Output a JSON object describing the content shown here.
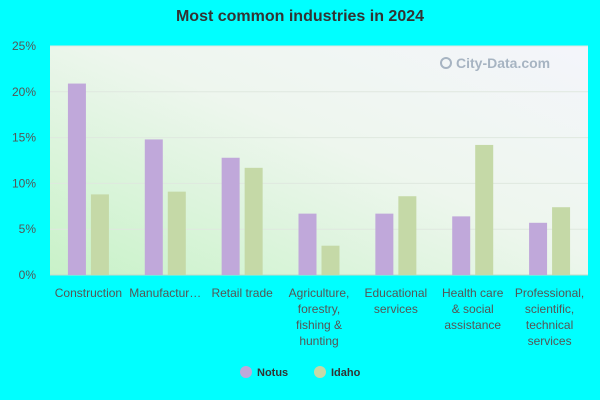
{
  "chart_data": {
    "type": "bar",
    "title": "Most common industries in 2024",
    "categories": [
      "Construction",
      "Manufactur…",
      "Retail trade",
      "Agriculture, forestry, fishing & hunting",
      "Educational services",
      "Health care & social assistance",
      "Professional, scientific, technical services"
    ],
    "category_lines": [
      [
        "Construction"
      ],
      [
        "Manufactur…"
      ],
      [
        "Retail trade"
      ],
      [
        "Agriculture,",
        "forestry,",
        "fishing &",
        "hunting"
      ],
      [
        "Educational",
        "services"
      ],
      [
        "Health care",
        "& social",
        "assistance"
      ],
      [
        "Professional,",
        "scientific,",
        "technical",
        "services"
      ]
    ],
    "series": [
      {
        "name": "Notus",
        "values": [
          20.9,
          14.8,
          12.8,
          6.7,
          6.7,
          6.4,
          5.7
        ],
        "color": "#c0a8da"
      },
      {
        "name": "Idaho",
        "values": [
          8.8,
          9.1,
          11.7,
          3.2,
          8.6,
          14.2,
          7.4
        ],
        "color": "#c5d9a7"
      }
    ],
    "ylim": [
      0,
      25
    ],
    "yticks": [
      0,
      5,
      10,
      15,
      20,
      25
    ],
    "ytick_labels": [
      "0%",
      "5%",
      "10%",
      "15%",
      "20%",
      "25%"
    ],
    "xlabel": "",
    "ylabel": "",
    "grid": true,
    "legend_position": "bottom-center",
    "watermark": "City-Data.com"
  }
}
